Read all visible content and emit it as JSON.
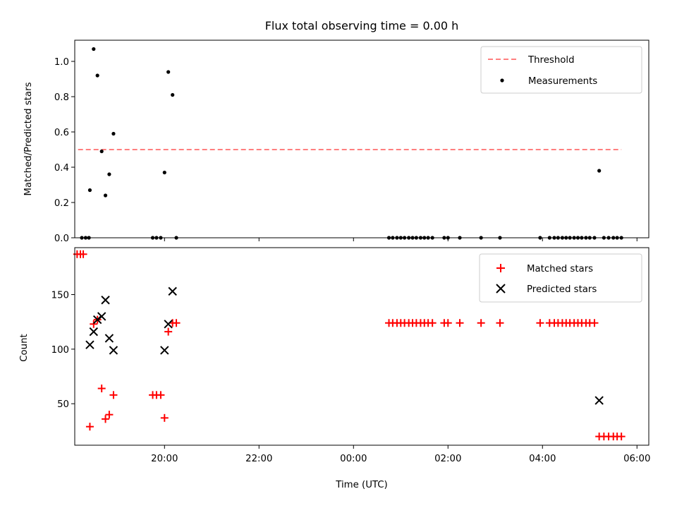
{
  "chart_data": [
    {
      "type": "scatter",
      "title": "Flux total observing time = 0.00 h",
      "xlabel": "",
      "ylabel": "Matched/Predicted stars",
      "ylim": [
        0.0,
        1.12
      ],
      "yticks": [
        "0.0",
        "0.2",
        "0.4",
        "0.6",
        "0.8",
        "1.0"
      ],
      "grid": false,
      "legend_position": "top-right",
      "threshold": {
        "name": "Threshold",
        "y": 0.5,
        "x_start_hours": 18.17,
        "x_end_hours": 29.67,
        "color": "#ff7f7f"
      },
      "series": [
        {
          "name": "Measurements",
          "color": "#000000",
          "points": [
            [
              18.25,
              0.0
            ],
            [
              18.33,
              0.0
            ],
            [
              18.4,
              0.0
            ],
            [
              18.42,
              0.27
            ],
            [
              18.5,
              1.07
            ],
            [
              18.58,
              0.92
            ],
            [
              18.67,
              0.49
            ],
            [
              18.75,
              0.24
            ],
            [
              18.83,
              0.36
            ],
            [
              18.92,
              0.59
            ],
            [
              19.75,
              0.0
            ],
            [
              19.83,
              0.0
            ],
            [
              19.92,
              0.0
            ],
            [
              20.0,
              0.37
            ],
            [
              20.08,
              0.94
            ],
            [
              20.17,
              0.81
            ],
            [
              20.25,
              0.0
            ],
            [
              24.75,
              0.0
            ],
            [
              24.83,
              0.0
            ],
            [
              24.92,
              0.0
            ],
            [
              25.0,
              0.0
            ],
            [
              25.08,
              0.0
            ],
            [
              25.17,
              0.0
            ],
            [
              25.25,
              0.0
            ],
            [
              25.33,
              0.0
            ],
            [
              25.42,
              0.0
            ],
            [
              25.5,
              0.0
            ],
            [
              25.58,
              0.0
            ],
            [
              25.67,
              0.0
            ],
            [
              25.92,
              0.0
            ],
            [
              26.0,
              0.0
            ],
            [
              26.25,
              0.0
            ],
            [
              26.7,
              0.0
            ],
            [
              27.1,
              0.0
            ],
            [
              27.95,
              0.0
            ],
            [
              28.15,
              0.0
            ],
            [
              28.25,
              0.0
            ],
            [
              28.33,
              0.0
            ],
            [
              28.42,
              0.0
            ],
            [
              28.5,
              0.0
            ],
            [
              28.58,
              0.0
            ],
            [
              28.67,
              0.0
            ],
            [
              28.75,
              0.0
            ],
            [
              28.83,
              0.0
            ],
            [
              28.92,
              0.0
            ],
            [
              29.0,
              0.0
            ],
            [
              29.1,
              0.0
            ],
            [
              29.2,
              0.38
            ],
            [
              29.3,
              0.0
            ],
            [
              29.4,
              0.0
            ],
            [
              29.5,
              0.0
            ],
            [
              29.58,
              0.0
            ],
            [
              29.67,
              0.0
            ]
          ]
        }
      ]
    },
    {
      "type": "scatter",
      "title": "",
      "xlabel": "Time (UTC)",
      "ylabel": "Count",
      "xlim_hours": [
        18.1,
        30.25
      ],
      "xticks": [
        {
          "label": "20:00",
          "hours": 20
        },
        {
          "label": "22:00",
          "hours": 22
        },
        {
          "label": "00:00",
          "hours": 24
        },
        {
          "label": "02:00",
          "hours": 26
        },
        {
          "label": "04:00",
          "hours": 28
        },
        {
          "label": "06:00",
          "hours": 30
        }
      ],
      "ylim": [
        12,
        193
      ],
      "yticks": [
        "50",
        "100",
        "150"
      ],
      "grid": false,
      "legend_position": "top-right",
      "series": [
        {
          "name": "Matched stars",
          "marker": "plus",
          "color": "#ff0000",
          "points": [
            [
              18.15,
              187
            ],
            [
              18.22,
              187
            ],
            [
              18.28,
              187
            ],
            [
              18.42,
              29
            ],
            [
              18.5,
              123
            ],
            [
              18.58,
              127
            ],
            [
              18.67,
              64
            ],
            [
              18.75,
              36
            ],
            [
              18.83,
              40
            ],
            [
              18.92,
              58
            ],
            [
              19.75,
              58
            ],
            [
              19.83,
              58
            ],
            [
              19.92,
              58
            ],
            [
              20.0,
              37
            ],
            [
              20.08,
              116
            ],
            [
              20.17,
              124
            ],
            [
              20.25,
              124
            ],
            [
              24.75,
              124
            ],
            [
              24.83,
              124
            ],
            [
              24.92,
              124
            ],
            [
              25.0,
              124
            ],
            [
              25.08,
              124
            ],
            [
              25.17,
              124
            ],
            [
              25.25,
              124
            ],
            [
              25.33,
              124
            ],
            [
              25.42,
              124
            ],
            [
              25.5,
              124
            ],
            [
              25.58,
              124
            ],
            [
              25.67,
              124
            ],
            [
              25.92,
              124
            ],
            [
              26.0,
              124
            ],
            [
              26.25,
              124
            ],
            [
              26.7,
              124
            ],
            [
              27.1,
              124
            ],
            [
              27.95,
              124
            ],
            [
              28.15,
              124
            ],
            [
              28.25,
              124
            ],
            [
              28.33,
              124
            ],
            [
              28.42,
              124
            ],
            [
              28.5,
              124
            ],
            [
              28.58,
              124
            ],
            [
              28.67,
              124
            ],
            [
              28.75,
              124
            ],
            [
              28.83,
              124
            ],
            [
              28.92,
              124
            ],
            [
              29.0,
              124
            ],
            [
              29.1,
              124
            ],
            [
              29.2,
              20
            ],
            [
              29.3,
              20
            ],
            [
              29.4,
              20
            ],
            [
              29.5,
              20
            ],
            [
              29.58,
              20
            ],
            [
              29.67,
              20
            ]
          ]
        },
        {
          "name": "Predicted stars",
          "marker": "x",
          "color": "#000000",
          "points": [
            [
              18.42,
              104
            ],
            [
              18.5,
              116
            ],
            [
              18.58,
              127
            ],
            [
              18.67,
              130
            ],
            [
              18.75,
              145
            ],
            [
              18.83,
              110
            ],
            [
              18.92,
              99
            ],
            [
              20.0,
              99
            ],
            [
              20.08,
              123
            ],
            [
              20.17,
              153
            ],
            [
              29.2,
              53
            ]
          ]
        }
      ]
    }
  ]
}
